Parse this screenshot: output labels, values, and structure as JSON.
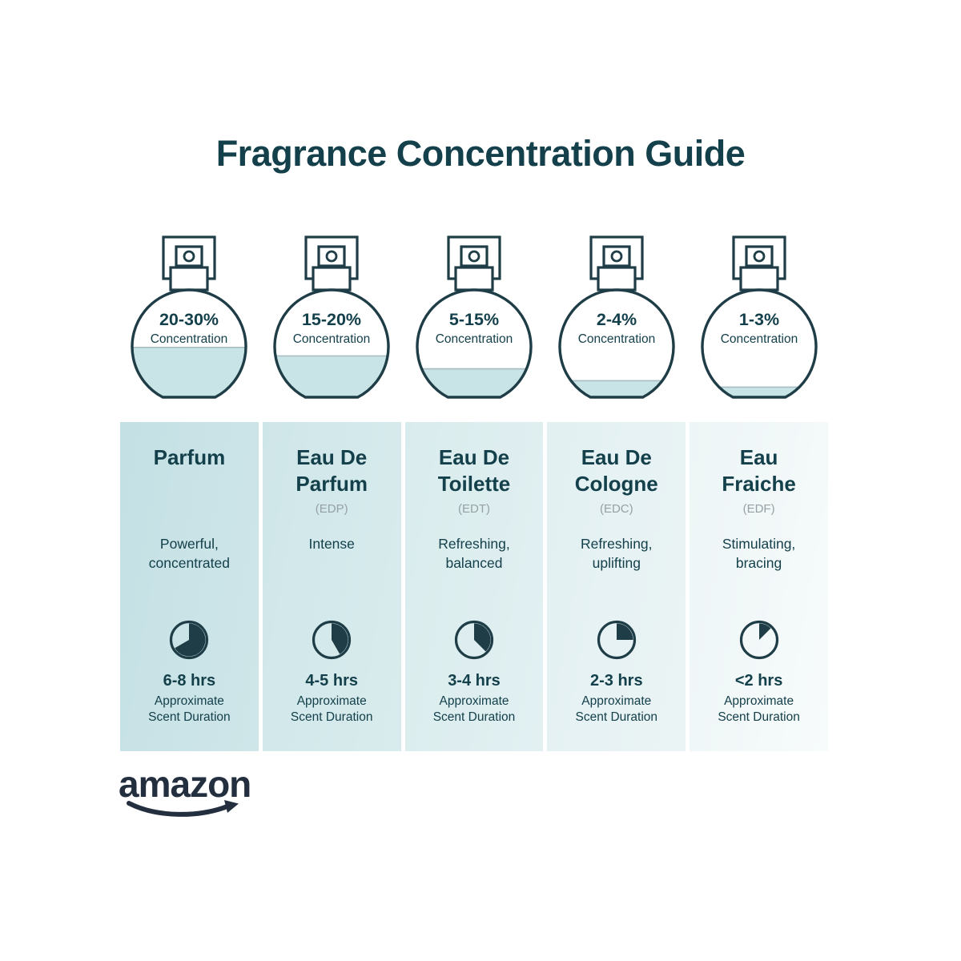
{
  "title": "Fragrance Concentration Guide",
  "brand": {
    "name": "amazon"
  },
  "columns": [
    {
      "concentration": "20-30%",
      "concentration_label": "Concentration",
      "fill_percent": 47,
      "name_line1": "Parfum",
      "name_line2": "",
      "abbr": "",
      "desc_line1": "Powerful,",
      "desc_line2": "concentrated",
      "clock_degrees": 240,
      "duration": "6-8 hrs",
      "duration_label1": "Approximate",
      "duration_label2": "Scent Duration"
    },
    {
      "concentration": "15-20%",
      "concentration_label": "Concentration",
      "fill_percent": 39,
      "name_line1": "Eau De",
      "name_line2": "Parfum",
      "abbr": "(EDP)",
      "desc_line1": "Intense",
      "desc_line2": "",
      "clock_degrees": 150,
      "duration": "4-5 hrs",
      "duration_label1": "Approximate",
      "duration_label2": "Scent Duration"
    },
    {
      "concentration": "5-15%",
      "concentration_label": "Concentration",
      "fill_percent": 27,
      "name_line1": "Eau De",
      "name_line2": "Toilette",
      "abbr": "(EDT)",
      "desc_line1": "Refreshing,",
      "desc_line2": "balanced",
      "clock_degrees": 135,
      "duration": "3-4 hrs",
      "duration_label1": "Approximate",
      "duration_label2": "Scent Duration"
    },
    {
      "concentration": "2-4%",
      "concentration_label": "Concentration",
      "fill_percent": 16,
      "name_line1": "Eau De",
      "name_line2": "Cologne",
      "abbr": "(EDC)",
      "desc_line1": "Refreshing,",
      "desc_line2": "uplifting",
      "clock_degrees": 90,
      "duration": "2-3 hrs",
      "duration_label1": "Approximate",
      "duration_label2": "Scent Duration"
    },
    {
      "concentration": "1-3%",
      "concentration_label": "Concentration",
      "fill_percent": 10,
      "name_line1": "Eau",
      "name_line2": "Fraiche",
      "abbr": "(EDF)",
      "desc_line1": "Stimulating,",
      "desc_line2": "bracing",
      "clock_degrees": 45,
      "duration": "<2 hrs",
      "duration_label1": "Approximate",
      "duration_label2": "Scent Duration"
    }
  ],
  "colors": {
    "ink": "#14404b",
    "stroke": "#1e3d47",
    "liquid": "#c9e4e6",
    "abbr_gray": "#95a1a5",
    "amazon": "#232f3e",
    "column_gradients": [
      [
        "#c4e0e4",
        "#cfe6e9"
      ],
      [
        "#cfe6e9",
        "#d9eced"
      ],
      [
        "#d9eced",
        "#e2f0f2"
      ],
      [
        "#e2f0f2",
        "#ebf4f5"
      ],
      [
        "#edf5f6",
        "#f7fbfb"
      ]
    ]
  }
}
